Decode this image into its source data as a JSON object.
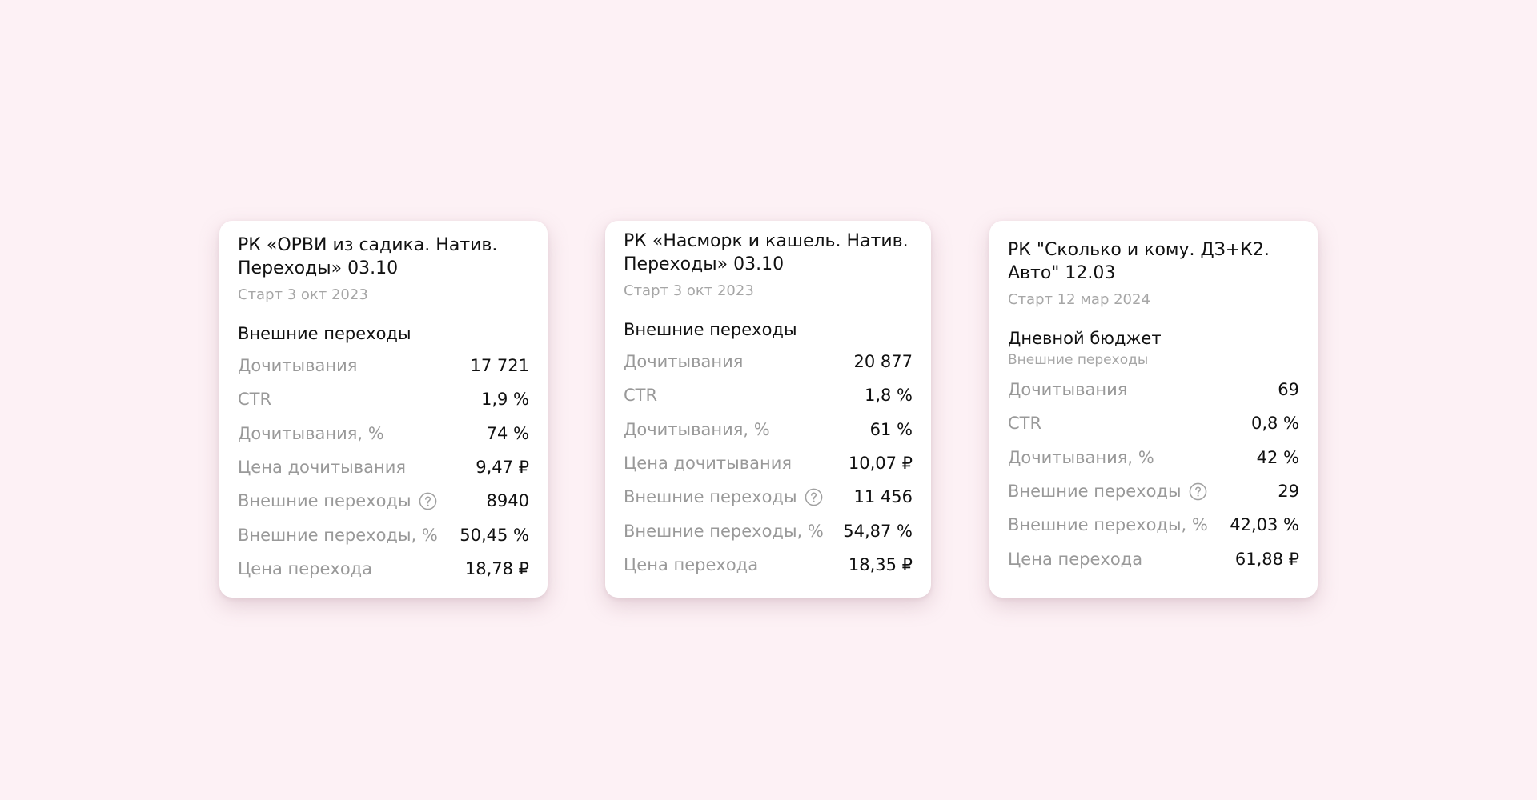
{
  "cards": [
    {
      "title": "РК «ОРВИ из садика. Натив. Переходы» 03.10",
      "start": "Старт 3 окт 2023",
      "section_title": "Внешние переходы",
      "section_subtitle": "",
      "metrics": [
        {
          "label": "Дочитывания",
          "value": "17 721",
          "help": false
        },
        {
          "label": "CTR",
          "value": "1,9 %",
          "help": false
        },
        {
          "label": "Дочитывания, %",
          "value": "74 %",
          "help": false
        },
        {
          "label": "Цена дочитывания",
          "value": "9,47 ₽",
          "help": false
        },
        {
          "label": "Внешние переходы",
          "value": "8940",
          "help": true
        },
        {
          "label": "Внешние переходы, %",
          "value": "50,45 %",
          "help": false
        },
        {
          "label": "Цена перехода",
          "value": "18,78 ₽",
          "help": false
        }
      ]
    },
    {
      "title": "РК «Насморк и кашель. Натив. Переходы» 03.10",
      "start": "Старт 3 окт 2023",
      "section_title": "Внешние переходы",
      "section_subtitle": "",
      "metrics": [
        {
          "label": "Дочитывания",
          "value": "20 877",
          "help": false
        },
        {
          "label": "CTR",
          "value": "1,8 %",
          "help": false
        },
        {
          "label": "Дочитывания, %",
          "value": "61 %",
          "help": false
        },
        {
          "label": "Цена дочитывания",
          "value": "10,07 ₽",
          "help": false
        },
        {
          "label": "Внешние переходы",
          "value": "11 456",
          "help": true
        },
        {
          "label": "Внешние переходы, %",
          "value": "54,87 %",
          "help": false
        },
        {
          "label": "Цена перехода",
          "value": "18,35 ₽",
          "help": false
        }
      ]
    },
    {
      "title": "РК \"Сколько и кому. ДЗ+К2. Авто\" 12.03",
      "start": "Старт 12 мар 2024",
      "section_title": "Дневной бюджет",
      "section_subtitle": "Внешние переходы",
      "metrics": [
        {
          "label": "Дочитывания",
          "value": "69",
          "help": false
        },
        {
          "label": "CTR",
          "value": "0,8 %",
          "help": false
        },
        {
          "label": "Дочитывания, %",
          "value": "42 %",
          "help": false
        },
        {
          "label": "Внешние переходы",
          "value": "29",
          "help": true
        },
        {
          "label": "Внешние переходы, %",
          "value": "42,03 %",
          "help": false
        },
        {
          "label": "Цена перехода",
          "value": "61,88 ₽",
          "help": false
        }
      ]
    }
  ],
  "icons": {
    "help": "question-circle-icon"
  },
  "colors": {
    "background": "#fdf1f5",
    "card": "#ffffff",
    "label": "#999999",
    "value": "#111111",
    "muted": "#a6a6a6"
  }
}
